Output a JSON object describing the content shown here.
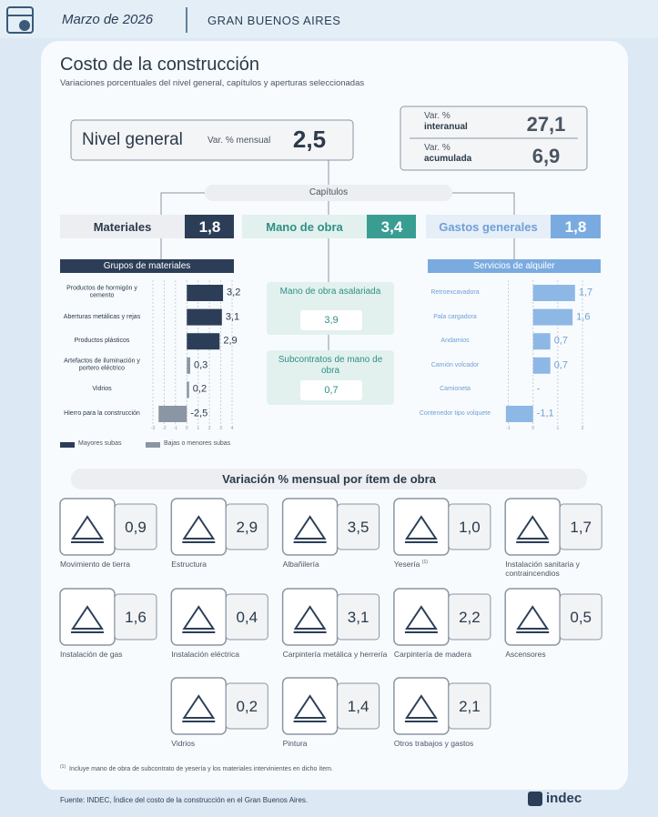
{
  "header": {
    "date": "Marzo de 2026",
    "region": "GRAN BUENOS AIRES"
  },
  "title": "Costo de la construcción",
  "subtitle": "Variaciones porcentuales del nivel general, capítulos y aperturas seleccionadas",
  "nivel_general": {
    "label": "Nivel general",
    "measure": "Var. % mensual",
    "value": "2,5"
  },
  "variations": [
    {
      "prefix": "Var. %",
      "label": "interanual",
      "value": "27,1"
    },
    {
      "prefix": "Var. %",
      "label": "acumulada",
      "value": "6,9"
    }
  ],
  "chapters_label": "Capítulos",
  "chapters": [
    {
      "label": "Materiales",
      "value": "1,8"
    },
    {
      "label": "Mano de obra",
      "value": "3,4"
    },
    {
      "label": "Gastos generales",
      "value": "1,8"
    }
  ],
  "labor": [
    {
      "label": "Mano de obra asalariada",
      "value": "3,9"
    },
    {
      "label": "Subcontratos de mano de obra",
      "value": "0,7"
    }
  ],
  "chart_data": [
    {
      "type": "bar",
      "orientation": "horizontal",
      "title": "Grupos de materiales",
      "categories": [
        "Productos de hormigón y cemento",
        "Aberturas metálicas y rejas",
        "Productos plásticos",
        "Artefactos de iluminación y portero eléctrico",
        "Vidrios",
        "Hierro para la construcción"
      ],
      "values": [
        3.2,
        3.1,
        2.9,
        0.3,
        0.2,
        -2.5
      ],
      "value_labels": [
        "3,2",
        "3,1",
        "2,9",
        "0,3",
        "0,2",
        "-2,5"
      ],
      "colors": [
        "#2c3e57",
        "#2c3e57",
        "#2c3e57",
        "#8a96a3",
        "#8a96a3",
        "#8a96a3"
      ],
      "xlim": [
        -3,
        4
      ],
      "xticks": [
        -3,
        -2,
        -1,
        0,
        1,
        2,
        3,
        4
      ],
      "legend": [
        {
          "name": "Mayores subas",
          "color": "#2c3e57"
        },
        {
          "name": "Bajas o menores subas",
          "color": "#8a96a3"
        }
      ]
    },
    {
      "type": "bar",
      "orientation": "horizontal",
      "title": "Servicios de alquiler",
      "categories": [
        "Retroexcavadora",
        "Pala cargadora",
        "Andamios",
        "Camión volcador",
        "Camioneta",
        "Contenedor tipo volquete"
      ],
      "values": [
        1.7,
        1.6,
        0.7,
        0.7,
        null,
        -1.1
      ],
      "value_labels": [
        "1,7",
        "1,6",
        "0,7",
        "0,7",
        "-",
        "-1,1"
      ],
      "color": "#8db8e6",
      "xlim": [
        -1.5,
        2
      ],
      "xticks": [
        -1,
        0,
        1,
        2
      ]
    }
  ],
  "items_title": "Variación % mensual por ítem de obra",
  "items": [
    {
      "name": "Movimiento de tierra",
      "value": "0,9"
    },
    {
      "name": "Estructura",
      "value": "2,9"
    },
    {
      "name": "Albañilería",
      "value": "3,5"
    },
    {
      "name": "Yesería",
      "note": "(1)",
      "value": "1,0"
    },
    {
      "name": "Instalación sanitaria y contraincendios",
      "value": "1,7"
    },
    {
      "name": "Instalación de gas",
      "value": "1,6"
    },
    {
      "name": "Instalación eléctrica",
      "value": "0,4"
    },
    {
      "name": "Carpintería metálica y herrería",
      "value": "3,1"
    },
    {
      "name": "Carpintería de madera",
      "value": "2,2"
    },
    {
      "name": "Ascensores",
      "value": "0,5"
    },
    {
      "name": "Vidrios",
      "value": "0,2"
    },
    {
      "name": "Pintura",
      "value": "1,4"
    },
    {
      "name": "Otros trabajos y gastos",
      "value": "2,1"
    }
  ],
  "footnote": {
    "mark": "(1)",
    "text": "Incluye mano de obra de subcontrato de yesería y los materiales intervinientes en dicho ítem."
  },
  "source": "Fuente: INDEC, Índice del costo de la construcción en el Gran Buenos Aires.",
  "logo": "indec"
}
